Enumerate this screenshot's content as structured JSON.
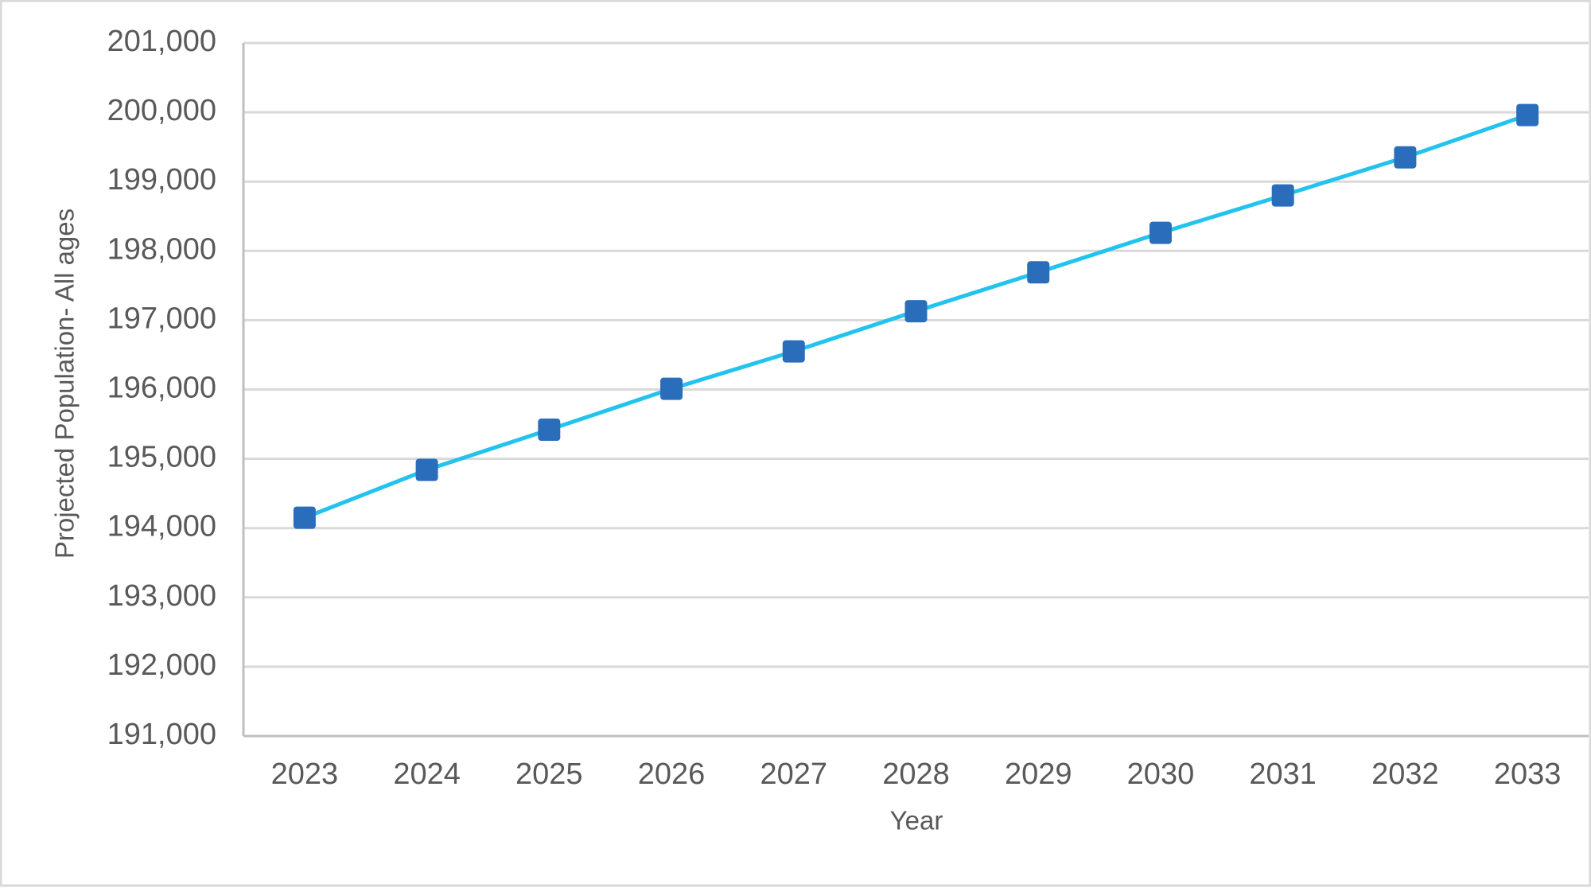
{
  "chart_data": {
    "type": "line",
    "x_label": "Year",
    "y_label": "Projected Population- All ages",
    "categories": [
      "2023",
      "2024",
      "2025",
      "2026",
      "2027",
      "2028",
      "2029",
      "2030",
      "2031",
      "2032",
      "2033"
    ],
    "values": [
      194150,
      194840,
      195420,
      196010,
      196550,
      197130,
      197690,
      198260,
      198800,
      199350,
      199960
    ],
    "color": "#22c3ee",
    "marker_color": "#2a6ebb",
    "ylim": [
      191000,
      201000
    ],
    "yticks": [
      {
        "value": 191000,
        "label": "191,000"
      },
      {
        "value": 192000,
        "label": "192,000"
      },
      {
        "value": 193000,
        "label": "193,000"
      },
      {
        "value": 194000,
        "label": "194,000"
      },
      {
        "value": 195000,
        "label": "195,000"
      },
      {
        "value": 196000,
        "label": "196,000"
      },
      {
        "value": 197000,
        "label": "197,000"
      },
      {
        "value": 198000,
        "label": "198,000"
      },
      {
        "value": 199000,
        "label": "199,000"
      },
      {
        "value": 200000,
        "label": "200,000"
      },
      {
        "value": 201000,
        "label": "201,000"
      }
    ],
    "grid": true
  }
}
